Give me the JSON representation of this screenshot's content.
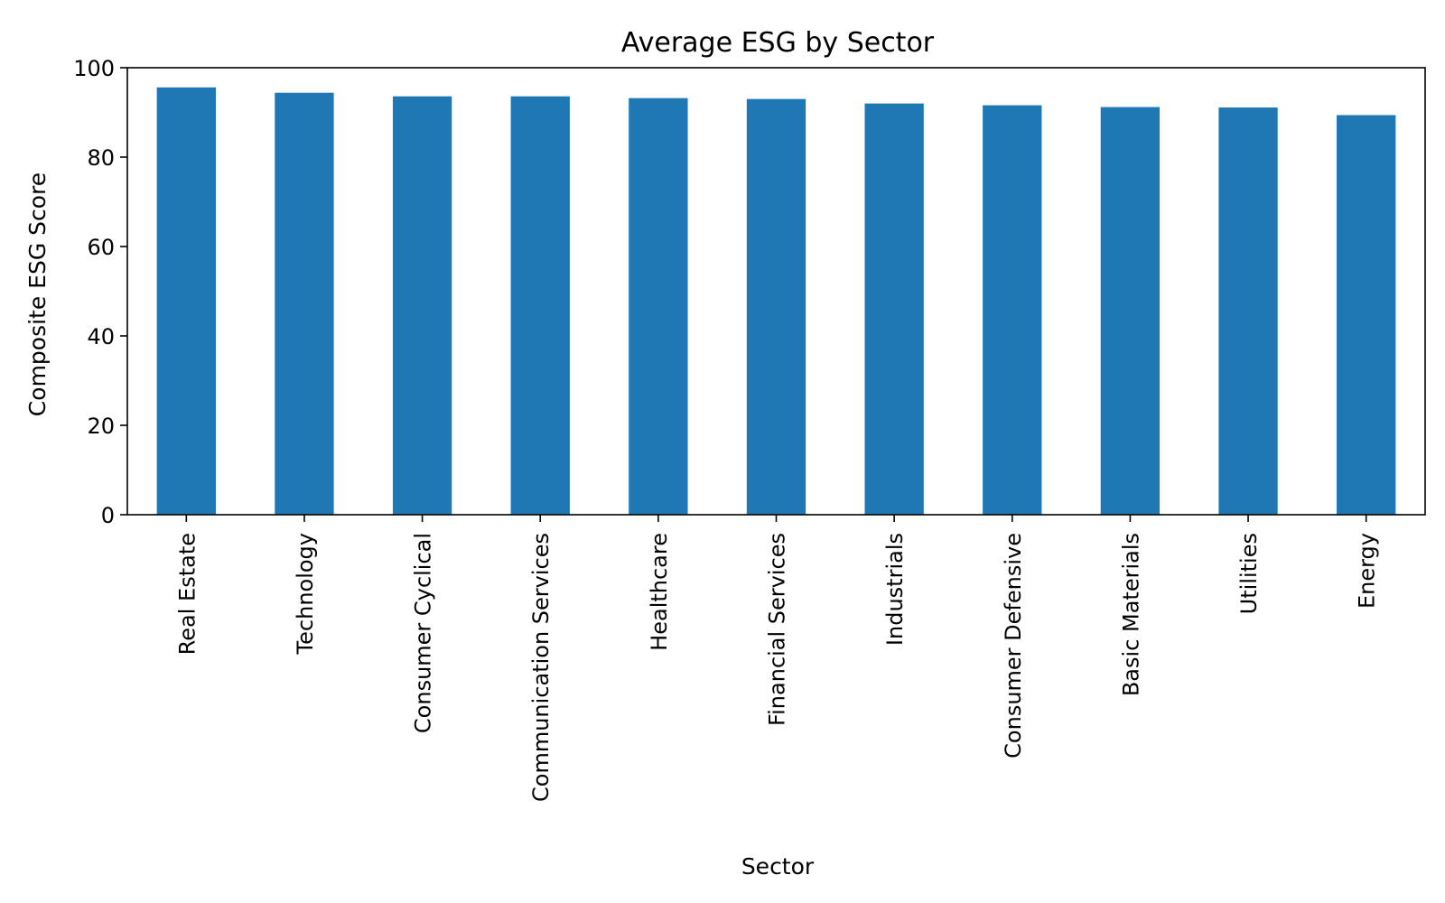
{
  "chart_data": {
    "type": "bar",
    "title": "Average ESG by Sector",
    "xlabel": "Sector",
    "ylabel": "Composite ESG Score",
    "categories": [
      "Real Estate",
      "Technology",
      "Consumer Cyclical",
      "Communication Services",
      "Healthcare",
      "Financial Services",
      "Industrials",
      "Consumer Defensive",
      "Basic Materials",
      "Utilities",
      "Energy"
    ],
    "values": [
      95.6,
      94.4,
      93.6,
      93.6,
      93.2,
      93.0,
      92.0,
      91.6,
      91.2,
      91.1,
      89.4
    ],
    "ylim": [
      0,
      100
    ],
    "yticks": [
      0,
      20,
      40,
      60,
      80,
      100
    ],
    "grid": false,
    "legend": "none",
    "bar_color": "#1f77b4"
  }
}
